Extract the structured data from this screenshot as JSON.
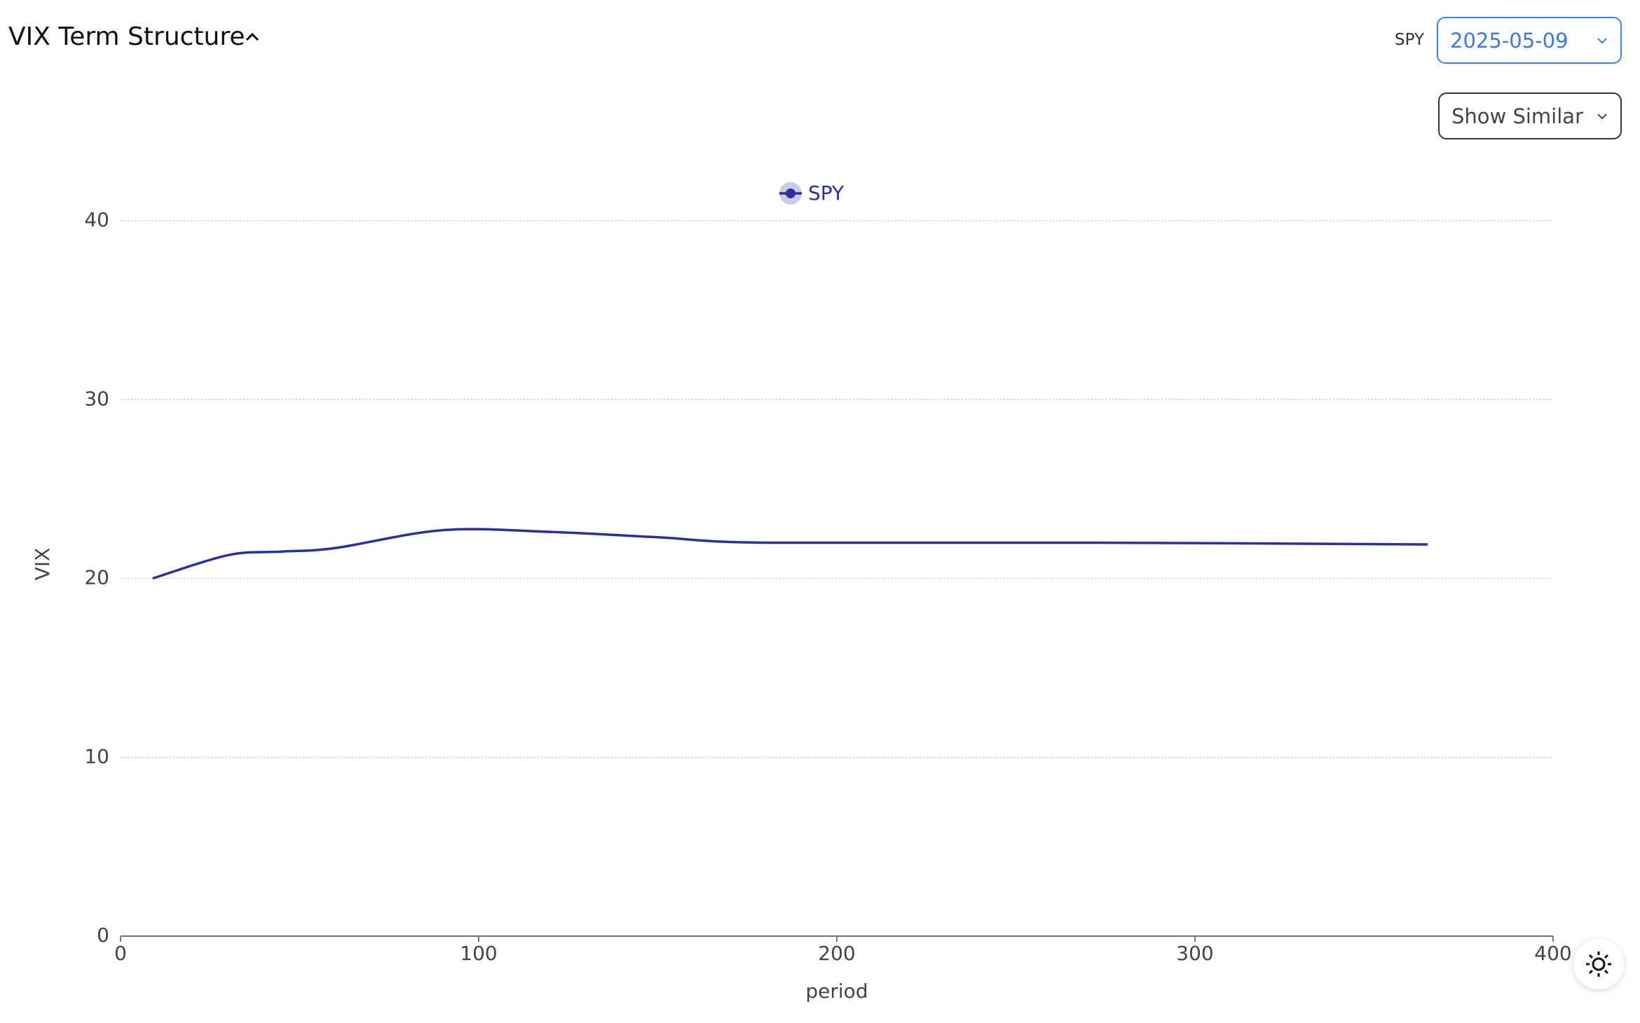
{
  "header": {
    "title": "VIX Term Structure"
  },
  "controls": {
    "ticker_label": "SPY",
    "date": "2025-05-09",
    "similar": "Show Similar"
  },
  "chart_data": {
    "type": "line",
    "x": [
      9,
      30,
      45,
      60,
      90,
      120,
      150,
      180,
      270,
      365
    ],
    "series": [
      {
        "name": "SPY",
        "color": "#2b2fa0",
        "values": [
          20.0,
          21.3,
          21.5,
          21.7,
          22.7,
          22.6,
          22.3,
          22.0,
          22.0,
          21.9
        ]
      }
    ],
    "xlim": [
      0,
      400
    ],
    "ylim": [
      0,
      40
    ],
    "xticks": [
      0,
      100,
      200,
      300,
      400
    ],
    "yticks": [
      0,
      10,
      20,
      30,
      40
    ],
    "xlabel": "period",
    "ylabel": "VIX",
    "grid": true
  }
}
